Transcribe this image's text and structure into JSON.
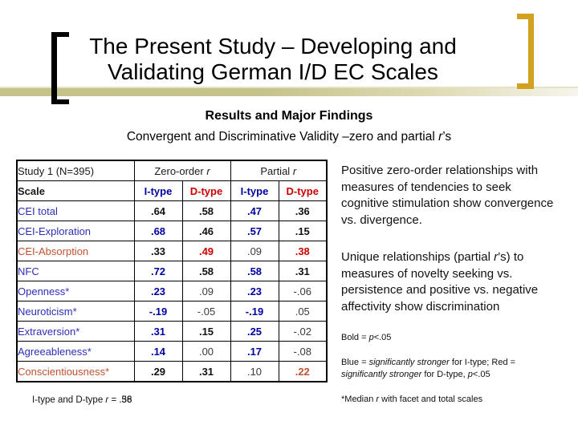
{
  "colors": {
    "blue_label": "#2E2EB8",
    "blue_value": "#0000A0",
    "red_value": "#CC0000",
    "orange_value": "#C0532F",
    "gold": "#D2A11E",
    "band_left": "#C6C28C",
    "band_right": "#F6F5EC"
  },
  "title": {
    "line1": "The Present Study – Developing and",
    "line2": "Validating German I/D EC Scales"
  },
  "subtitles": {
    "line1": "Results and Major Findings",
    "line2_segments": [
      {
        "t": "Convergent and Discriminative Validity –zero and partial "
      },
      {
        "t": "r",
        "i": 1
      },
      {
        "t": "’s"
      }
    ]
  },
  "table": {
    "header": {
      "study": "Study 1 (N=395)",
      "zero_order_segments": [
        {
          "t": "Zero-order "
        },
        {
          "t": "r",
          "i": 1
        }
      ],
      "partial_segments": [
        {
          "t": "Partial "
        },
        {
          "t": "r",
          "i": 1
        }
      ],
      "scale": "Scale",
      "col_i_type": "I-type",
      "col_d_type": "D-type"
    },
    "rows": [
      {
        "label": "CEI total",
        "label_color": "blue",
        "cells": [
          {
            "v": ".64",
            "b": 1,
            "c": "black"
          },
          {
            "v": ".58",
            "b": 1,
            "c": "black"
          },
          {
            "v": ".47",
            "b": 1,
            "c": "blue"
          },
          {
            "v": ".36",
            "b": 1,
            "c": "black"
          }
        ]
      },
      {
        "label": "CEI-Exploration",
        "label_color": "blue",
        "cells": [
          {
            "v": ".68",
            "b": 1,
            "c": "blue"
          },
          {
            "v": ".46",
            "b": 1,
            "c": "black"
          },
          {
            "v": ".57",
            "b": 1,
            "c": "blue"
          },
          {
            "v": ".15",
            "b": 1,
            "c": "black"
          }
        ]
      },
      {
        "label": "CEI-Absorption",
        "label_color": "orange",
        "cells": [
          {
            "v": ".33",
            "b": 1,
            "c": "black"
          },
          {
            "v": ".49",
            "b": 1,
            "c": "red"
          },
          {
            "v": ".09",
            "b": 0,
            "c": "black"
          },
          {
            "v": ".38",
            "b": 1,
            "c": "red"
          }
        ]
      },
      {
        "label": "NFC",
        "label_color": "blue",
        "cells": [
          {
            "v": ".72",
            "b": 1,
            "c": "blue"
          },
          {
            "v": ".58",
            "b": 1,
            "c": "black"
          },
          {
            "v": ".58",
            "b": 1,
            "c": "blue"
          },
          {
            "v": ".31",
            "b": 1,
            "c": "black"
          }
        ]
      },
      {
        "label": "Openness*",
        "label_color": "blue",
        "cells": [
          {
            "v": ".23",
            "b": 1,
            "c": "blue"
          },
          {
            "v": ".09",
            "b": 0,
            "c": "black"
          },
          {
            "v": ".23",
            "b": 1,
            "c": "blue"
          },
          {
            "v": "-.06",
            "b": 0,
            "c": "black"
          }
        ]
      },
      {
        "label": "Neuroticism*",
        "label_color": "blue",
        "cells": [
          {
            "v": "-.19",
            "b": 1,
            "c": "blue"
          },
          {
            "v": "-.05",
            "b": 0,
            "c": "black"
          },
          {
            "v": "-.19",
            "b": 1,
            "c": "blue"
          },
          {
            "v": ".05",
            "b": 0,
            "c": "black"
          }
        ]
      },
      {
        "label": "Extraversion*",
        "label_color": "blue",
        "cells": [
          {
            "v": ".31",
            "b": 1,
            "c": "blue"
          },
          {
            "v": ".15",
            "b": 1,
            "c": "black"
          },
          {
            "v": ".25",
            "b": 1,
            "c": "blue"
          },
          {
            "v": "-.02",
            "b": 0,
            "c": "black"
          }
        ]
      },
      {
        "label": "Agreeableness*",
        "label_color": "blue",
        "cells": [
          {
            "v": ".14",
            "b": 1,
            "c": "blue"
          },
          {
            "v": ".00",
            "b": 0,
            "c": "black"
          },
          {
            "v": ".17",
            "b": 1,
            "c": "blue"
          },
          {
            "v": "-.08",
            "b": 0,
            "c": "black"
          }
        ]
      },
      {
        "label": "Conscientiousness*",
        "label_color": "orange",
        "cells": [
          {
            "v": ".29",
            "b": 1,
            "c": "black"
          },
          {
            "v": ".31",
            "b": 1,
            "c": "black"
          },
          {
            "v": ".10",
            "b": 0,
            "c": "black"
          },
          {
            "v": ".22",
            "b": 1,
            "c": "orange"
          }
        ]
      }
    ]
  },
  "annotations": {
    "para1": "Positive zero-order relationships with\nmeasures of tendencies to seek\ncognitive stimulation show convergence\nvs. divergence.",
    "para2_segments": [
      {
        "t": "Unique relationships (partial "
      },
      {
        "t": "r",
        "i": 1
      },
      {
        "t": "’s) to\nmeasures of novelty seeking vs.\npersistence and positive vs. negative\naffectivity show discrimination"
      }
    ],
    "notes": {
      "line1_segments": [
        {
          "t": "Bold = "
        },
        {
          "t": "p",
          "i": 1
        },
        {
          "t": "<.05"
        }
      ],
      "line2_segments": [
        {
          "t": "Blue = "
        },
        {
          "t": "significantly stronger",
          "i": 1
        },
        {
          "t": " for I-type; Red =\n"
        },
        {
          "t": "significantly stronger",
          "i": 1
        },
        {
          "t": " for D-type, "
        },
        {
          "t": "p",
          "i": 1
        },
        {
          "t": "<.05"
        }
      ],
      "line3_segments": [
        {
          "t": "*Median "
        },
        {
          "t": "r",
          "i": 1
        },
        {
          "t": " with facet and total scales"
        }
      ]
    }
  },
  "footer": {
    "prefix_segments": [
      {
        "t": "I-type and D-type "
      },
      {
        "t": "r",
        "i": 1
      },
      {
        "t": " = "
      }
    ],
    "value_layer_a": ".36",
    "value_layer_b": ".58"
  }
}
